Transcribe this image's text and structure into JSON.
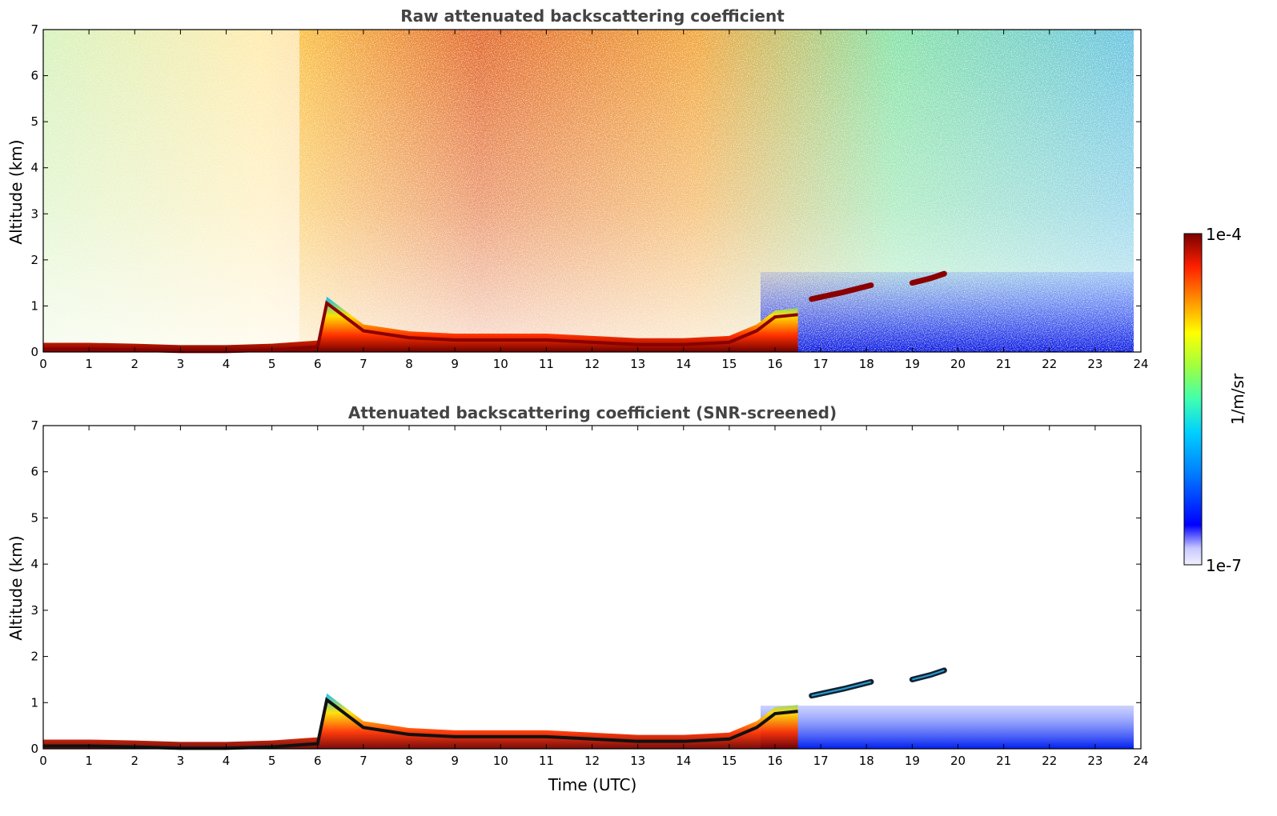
{
  "chart_data": [
    {
      "type": "heatmap",
      "title": "Raw attenuated backscattering coefficient",
      "xlabel": "",
      "ylabel": "Altitude (km)",
      "xlim": [
        0,
        24
      ],
      "ylim": [
        0,
        7
      ],
      "xticks": [
        "0",
        "1",
        "2",
        "3",
        "4",
        "5",
        "6",
        "7",
        "8",
        "9",
        "10",
        "11",
        "12",
        "13",
        "14",
        "15",
        "16",
        "17",
        "18",
        "19",
        "20",
        "21",
        "22",
        "23",
        "24"
      ],
      "yticks": [
        "0",
        "1",
        "2",
        "3",
        "4",
        "5",
        "6",
        "7"
      ],
      "screened": false,
      "features": [
        {
          "name": "boundary-layer",
          "x": [
            0,
            1,
            2,
            3,
            4,
            5,
            6,
            6.2,
            7,
            8,
            9,
            10,
            11,
            12,
            13,
            14,
            15,
            15.6,
            16,
            16.5
          ],
          "y": [
            0.2,
            0.2,
            0.18,
            0.15,
            0.15,
            0.18,
            0.25,
            1.2,
            0.6,
            0.45,
            0.4,
            0.4,
            0.4,
            0.35,
            0.3,
            0.3,
            0.35,
            0.6,
            0.9,
            0.95
          ]
        },
        {
          "name": "elevated-layer-1",
          "x": [
            16.8,
            17.5,
            18.1
          ],
          "y": [
            1.15,
            1.3,
            1.45
          ]
        },
        {
          "name": "elevated-layer-2",
          "x": [
            19.0,
            19.4,
            19.7
          ],
          "y": [
            1.5,
            1.6,
            1.7
          ]
        }
      ]
    },
    {
      "type": "heatmap",
      "title": "Attenuated backscattering coefficient (SNR-screened)",
      "xlabel": "Time (UTC)",
      "ylabel": "Altitude (km)",
      "xlim": [
        0,
        24
      ],
      "ylim": [
        0,
        7
      ],
      "xticks": [
        "0",
        "1",
        "2",
        "3",
        "4",
        "5",
        "6",
        "7",
        "8",
        "9",
        "10",
        "11",
        "12",
        "13",
        "14",
        "15",
        "16",
        "17",
        "18",
        "19",
        "20",
        "21",
        "22",
        "23",
        "24"
      ],
      "yticks": [
        "0",
        "1",
        "2",
        "3",
        "4",
        "5",
        "6",
        "7"
      ],
      "screened": true,
      "features": [
        {
          "name": "boundary-layer",
          "x": [
            0,
            1,
            2,
            3,
            4,
            5,
            6,
            6.2,
            7,
            8,
            9,
            10,
            11,
            12,
            13,
            14,
            15,
            15.6,
            16,
            16.5
          ],
          "y": [
            0.2,
            0.2,
            0.18,
            0.15,
            0.15,
            0.18,
            0.25,
            1.2,
            0.6,
            0.45,
            0.4,
            0.4,
            0.4,
            0.35,
            0.3,
            0.3,
            0.35,
            0.6,
            0.9,
            0.95
          ]
        },
        {
          "name": "elevated-layer-1",
          "x": [
            16.8,
            17.5,
            18.1
          ],
          "y": [
            1.15,
            1.3,
            1.45
          ]
        },
        {
          "name": "elevated-layer-2",
          "x": [
            19.0,
            19.4,
            19.7
          ],
          "y": [
            1.5,
            1.6,
            1.7
          ]
        }
      ]
    }
  ],
  "colorbar": {
    "max_label": "1e-4",
    "min_label": "1e-7",
    "unit_label": "1/m/sr",
    "colors": [
      "#f0f0ff",
      "#c8c8ff",
      "#0000ff",
      "#0080ff",
      "#00d0ff",
      "#40ffb0",
      "#a0ff40",
      "#ffff00",
      "#ff9000",
      "#ff2000",
      "#7a0000"
    ]
  }
}
